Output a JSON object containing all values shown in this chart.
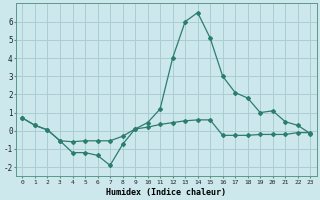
{
  "xlabel": "Humidex (Indice chaleur)",
  "x": [
    0,
    1,
    2,
    3,
    4,
    5,
    6,
    7,
    8,
    9,
    10,
    11,
    12,
    13,
    14,
    15,
    16,
    17,
    18,
    19,
    20,
    21,
    22,
    23
  ],
  "y_upper": [
    0.7,
    0.3,
    0.05,
    -0.55,
    -1.2,
    -1.2,
    -1.35,
    -1.9,
    -0.75,
    0.1,
    0.45,
    1.2,
    4.0,
    6.0,
    6.5,
    5.1,
    3.0,
    2.1,
    1.8,
    1.0,
    1.1,
    0.5,
    0.3,
    -0.15
  ],
  "y_lower": [
    0.7,
    0.3,
    0.05,
    -0.55,
    -0.6,
    -0.55,
    -0.55,
    -0.55,
    -0.3,
    0.1,
    0.2,
    0.35,
    0.45,
    0.55,
    0.6,
    0.6,
    -0.25,
    -0.25,
    -0.25,
    -0.2,
    -0.2,
    -0.2,
    -0.1,
    -0.1
  ],
  "line_color": "#2d7d6d",
  "bg_color": "#cce8ec",
  "grid_color": "#aacdd4",
  "ylim": [
    -2.5,
    7.0
  ],
  "xlim": [
    -0.5,
    23.5
  ],
  "yticks": [
    -2,
    -1,
    0,
    1,
    2,
    3,
    4,
    5,
    6
  ],
  "xticks": [
    0,
    1,
    2,
    3,
    4,
    5,
    6,
    7,
    8,
    9,
    10,
    11,
    12,
    13,
    14,
    15,
    16,
    17,
    18,
    19,
    20,
    21,
    22,
    23
  ]
}
